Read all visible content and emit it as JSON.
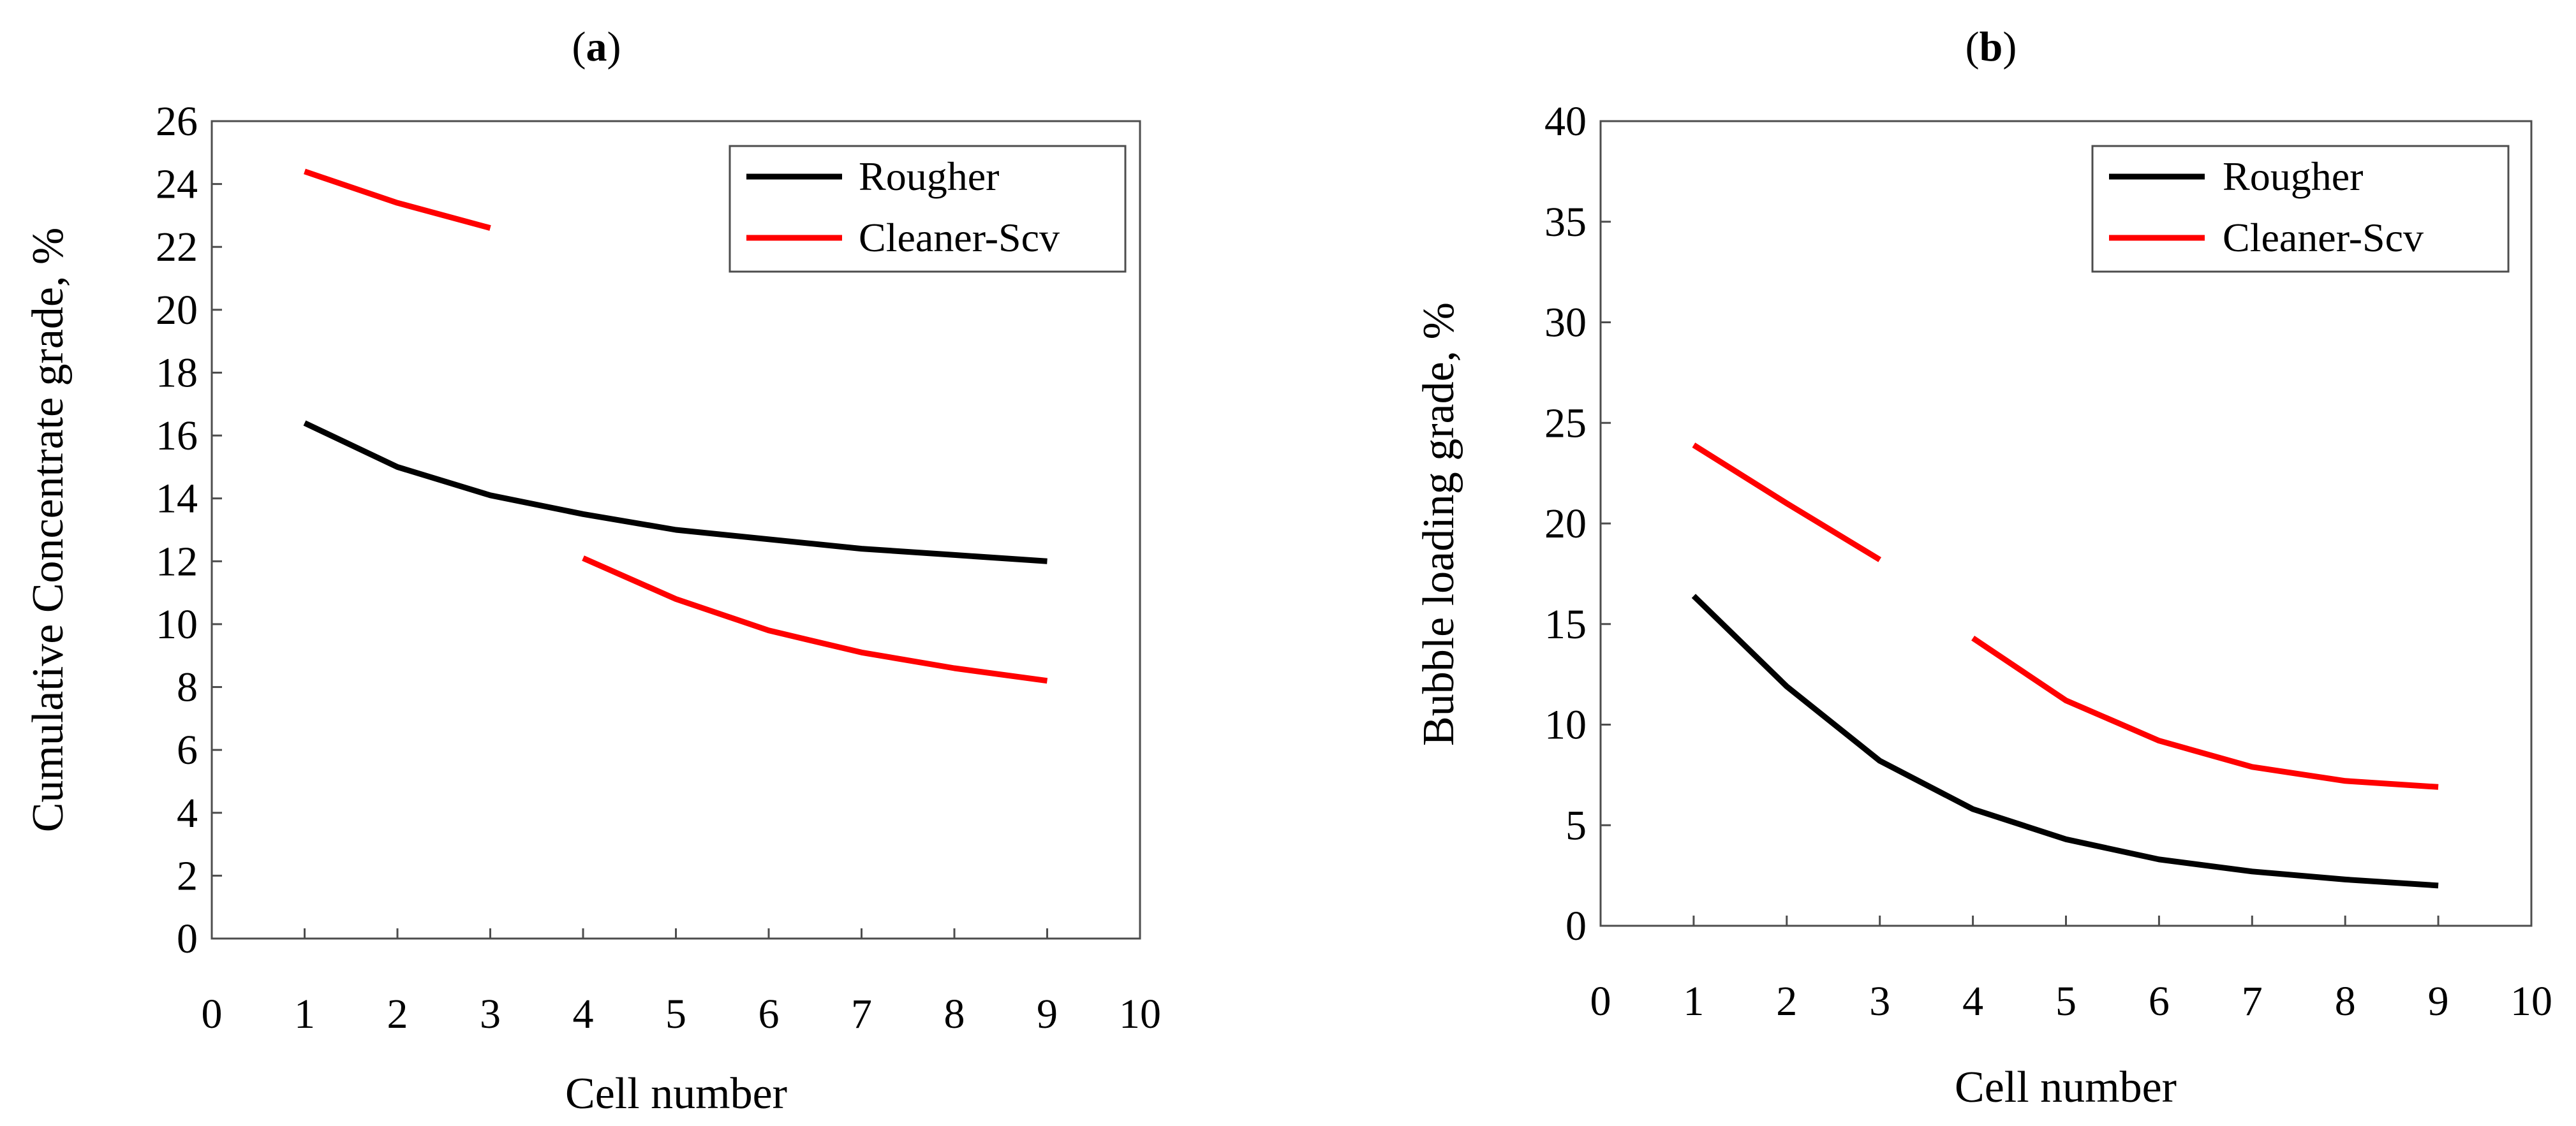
{
  "chart_data": [
    {
      "panel": "a",
      "type": "line",
      "title": "(a)",
      "xlabel": "Cell number",
      "ylabel": "Cumulative Concentrate grade, %",
      "xlim": [
        0,
        10
      ],
      "ylim": [
        0,
        26
      ],
      "xticks": [
        0,
        1,
        2,
        3,
        4,
        5,
        6,
        7,
        8,
        9,
        10
      ],
      "yticks": [
        0,
        2,
        4,
        6,
        8,
        10,
        12,
        14,
        16,
        18,
        20,
        22,
        24,
        26
      ],
      "grid": false,
      "legend": "top-right",
      "series": [
        {
          "name": "Rougher",
          "color": "#000000",
          "segments": [
            {
              "x": [
                1,
                2,
                3,
                4,
                5,
                6,
                7,
                8,
                9
              ],
              "y": [
                16.4,
                15.0,
                14.1,
                13.5,
                13.0,
                12.7,
                12.4,
                12.2,
                12.0
              ]
            }
          ]
        },
        {
          "name": "Cleaner-Scv",
          "color": "#ff0000",
          "segments": [
            {
              "x": [
                1,
                2,
                3
              ],
              "y": [
                24.4,
                23.4,
                22.6
              ]
            },
            {
              "x": [
                4,
                5,
                6,
                7,
                8,
                9
              ],
              "y": [
                12.1,
                10.8,
                9.8,
                9.1,
                8.6,
                8.2
              ]
            }
          ]
        }
      ]
    },
    {
      "panel": "b",
      "type": "line",
      "title": "(b)",
      "xlabel": "Cell number",
      "ylabel": "Bubble loading grade, %",
      "xlim": [
        0,
        10
      ],
      "ylim": [
        0,
        40
      ],
      "xticks": [
        0,
        1,
        2,
        3,
        4,
        5,
        6,
        7,
        8,
        9,
        10
      ],
      "yticks": [
        0,
        5,
        10,
        15,
        20,
        25,
        30,
        35,
        40
      ],
      "grid": false,
      "legend": "top-right",
      "series": [
        {
          "name": "Rougher",
          "color": "#000000",
          "segments": [
            {
              "x": [
                1,
                2,
                3,
                4,
                5,
                6,
                7,
                8,
                9
              ],
              "y": [
                16.4,
                11.9,
                8.2,
                5.8,
                4.3,
                3.3,
                2.7,
                2.3,
                2.0
              ]
            }
          ]
        },
        {
          "name": "Cleaner-Scv",
          "color": "#ff0000",
          "segments": [
            {
              "x": [
                1,
                2,
                3
              ],
              "y": [
                23.9,
                21.0,
                18.2
              ]
            },
            {
              "x": [
                4,
                5,
                6,
                7,
                8,
                9
              ],
              "y": [
                14.3,
                11.2,
                9.2,
                7.9,
                7.2,
                6.9
              ]
            }
          ]
        }
      ]
    }
  ]
}
